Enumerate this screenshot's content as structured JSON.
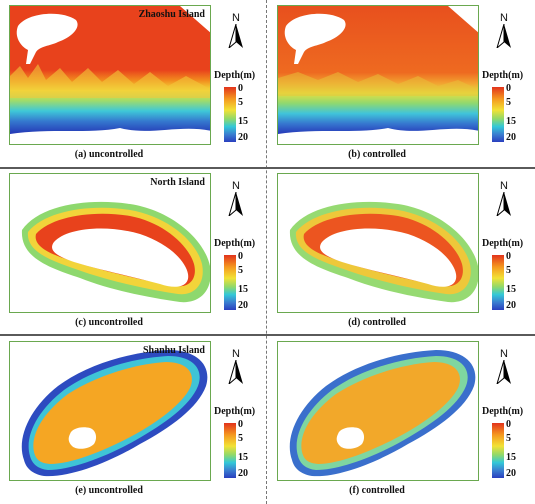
{
  "panels": [
    {
      "id": "a",
      "island": "Zhaoshu Island",
      "caption": "(a) uncontrolled",
      "mode": "uncontrolled",
      "shape": "zhaoshu"
    },
    {
      "id": "b",
      "island": "",
      "caption": "(b) controlled",
      "mode": "controlled",
      "shape": "zhaoshu"
    },
    {
      "id": "c",
      "island": "North Island",
      "caption": "(c) uncontrolled",
      "mode": "uncontrolled",
      "shape": "north"
    },
    {
      "id": "d",
      "island": "",
      "caption": "(d) controlled",
      "mode": "controlled",
      "shape": "north"
    },
    {
      "id": "e",
      "island": "Shanhu Island",
      "caption": "(e) uncontrolled",
      "mode": "uncontrolled",
      "shape": "shanhu"
    },
    {
      "id": "f",
      "island": "",
      "caption": "(f) controlled",
      "mode": "controlled",
      "shape": "shanhu"
    }
  ],
  "legend": {
    "title": "Depth(m)",
    "ticks": [
      "0",
      "5",
      "15",
      "20"
    ],
    "colors": [
      "#e2331c",
      "#f59a1f",
      "#f2e235",
      "#8fd96b",
      "#33c8d8",
      "#3a7fd0",
      "#2a3fbf"
    ]
  },
  "north_arrow": {
    "letter": "N",
    "icon": "north-arrow-icon"
  }
}
